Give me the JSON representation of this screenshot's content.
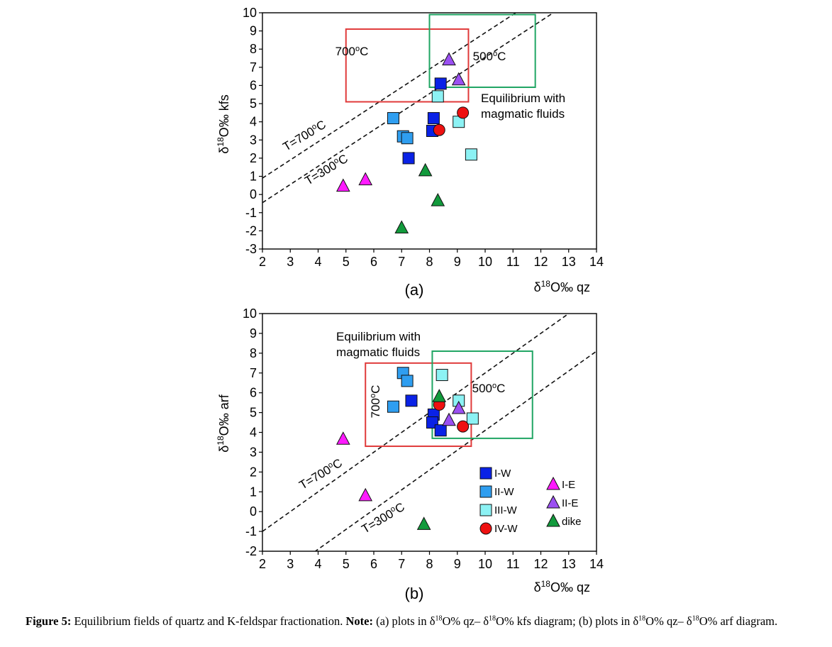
{
  "figure": {
    "caption_lead": "Figure 5:",
    "caption_text": "Equilibrium fields of quartz and K-feldspar fractionation.",
    "caption_note_label": "Note:",
    "caption_a_pre": "(a) plots in δ",
    "caption_a_mid1": "O% qz– δ",
    "caption_a_mid2": "O% kfs diagram; (b) plots in δ",
    "caption_b_mid": "O% qz–",
    "caption_b_pre": "δ",
    "caption_b_end": "O% arf diagram.",
    "caption_sup": "18"
  },
  "legend": {
    "items": [
      {
        "label": "I-W",
        "marker": "square",
        "color": "#0a22e6"
      },
      {
        "label": "II-W",
        "marker": "square",
        "color": "#2f9ef0"
      },
      {
        "label": "III-W",
        "marker": "square",
        "color": "#8cf2f4"
      },
      {
        "label": "IV-W",
        "marker": "circle",
        "color": "#ee1111"
      },
      {
        "label": "I-E",
        "marker": "triangle",
        "color": "#ff1aff"
      },
      {
        "label": "II-E",
        "marker": "triangle",
        "color": "#9b50f2"
      },
      {
        "label": "dike",
        "marker": "triangle",
        "color": "#129a3c"
      }
    ]
  },
  "chart_data": [
    {
      "type": "scatter",
      "panel_label": "(a)",
      "xlabel_prefix": "δ",
      "xlabel_sup": "18",
      "xlabel_suffix": "O‰ qz",
      "ylabel_prefix": "δ",
      "ylabel_sup": "18",
      "ylabel_suffix": "O‰ kfs",
      "xlim": [
        2,
        14
      ],
      "ylim": [
        -3,
        10
      ],
      "xticks": [
        2,
        3,
        4,
        5,
        6,
        7,
        8,
        9,
        10,
        11,
        12,
        13,
        14
      ],
      "yticks": [
        -3,
        -2,
        -1,
        0,
        1,
        2,
        3,
        4,
        5,
        6,
        7,
        8,
        9,
        10
      ],
      "lines": [
        {
          "label": "T=700",
          "sup": "o",
          "suffix": "C",
          "intercept": -1.1
        },
        {
          "label": "T=300",
          "sup": "o",
          "suffix": "C",
          "intercept": -2.45
        }
      ],
      "boxes": [
        {
          "label": "700",
          "sup": "o",
          "suffix": "C",
          "color": "#e03a3a",
          "x": [
            5.0,
            9.4
          ],
          "y": [
            5.1,
            9.1
          ],
          "rotate": false
        },
        {
          "label": "500",
          "sup": "o",
          "suffix": "C",
          "color": "#1fa563",
          "x": [
            8.0,
            11.8
          ],
          "y": [
            5.9,
            9.9
          ],
          "rotate": false
        }
      ],
      "annotation": [
        "Equilibrium with",
        "magmatic fluids"
      ],
      "series": [
        {
          "name": "I-W",
          "marker": "square",
          "color": "#0a22e6",
          "points": [
            [
              8.4,
              6.1
            ],
            [
              8.15,
              4.2
            ],
            [
              8.1,
              3.5
            ],
            [
              7.25,
              2.0
            ]
          ]
        },
        {
          "name": "II-W",
          "marker": "square",
          "color": "#2f9ef0",
          "points": [
            [
              6.7,
              4.2
            ],
            [
              7.05,
              3.2
            ],
            [
              7.2,
              3.1
            ]
          ]
        },
        {
          "name": "III-W",
          "marker": "square",
          "color": "#8cf2f4",
          "points": [
            [
              8.3,
              5.4
            ],
            [
              9.05,
              4.0
            ],
            [
              9.5,
              2.2
            ]
          ]
        },
        {
          "name": "IV-W",
          "marker": "circle",
          "color": "#ee1111",
          "points": [
            [
              9.2,
              4.5
            ],
            [
              8.35,
              3.55
            ]
          ]
        },
        {
          "name": "I-E",
          "marker": "triangle",
          "color": "#ff1aff",
          "points": [
            [
              4.9,
              0.45
            ],
            [
              5.7,
              0.8
            ]
          ]
        },
        {
          "name": "II-E",
          "marker": "triangle",
          "color": "#9b50f2",
          "points": [
            [
              8.7,
              7.4
            ],
            [
              9.05,
              6.3
            ]
          ]
        },
        {
          "name": "dike",
          "marker": "triangle",
          "color": "#129a3c",
          "points": [
            [
              7.85,
              1.3
            ],
            [
              8.3,
              -0.35
            ],
            [
              7.0,
              -1.85
            ]
          ]
        }
      ]
    },
    {
      "type": "scatter",
      "panel_label": "(b)",
      "xlabel_prefix": "δ",
      "xlabel_sup": "18",
      "xlabel_suffix": "O‰ qz",
      "ylabel_prefix": "δ",
      "ylabel_sup": "18",
      "ylabel_suffix": "O‰ arf",
      "xlim": [
        2,
        14
      ],
      "ylim": [
        -2,
        10
      ],
      "xticks": [
        2,
        3,
        4,
        5,
        6,
        7,
        8,
        9,
        10,
        11,
        12,
        13,
        14
      ],
      "yticks": [
        -2,
        -1,
        0,
        1,
        2,
        3,
        4,
        5,
        6,
        7,
        8,
        9,
        10
      ],
      "lines": [
        {
          "label": "T=700",
          "sup": "o",
          "suffix": "C",
          "intercept": -3.0
        },
        {
          "label": "T=300",
          "sup": "o",
          "suffix": "C",
          "intercept": -5.9
        }
      ],
      "boxes": [
        {
          "label": "700",
          "sup": "o",
          "suffix": "C",
          "color": "#e03a3a",
          "x": [
            5.7,
            9.5
          ],
          "y": [
            3.3,
            7.5
          ],
          "rotate": true
        },
        {
          "label": "500",
          "sup": "o",
          "suffix": "C",
          "color": "#1fa563",
          "x": [
            8.1,
            11.7
          ],
          "y": [
            3.7,
            8.1
          ],
          "rotate": false
        }
      ],
      "annotation": [
        "Equilibrium with",
        "magmatic fluids"
      ],
      "series": [
        {
          "name": "I-W",
          "marker": "square",
          "color": "#0a22e6",
          "points": [
            [
              7.35,
              5.6
            ],
            [
              8.15,
              4.9
            ],
            [
              8.1,
              4.5
            ],
            [
              8.4,
              4.1
            ]
          ]
        },
        {
          "name": "II-W",
          "marker": "square",
          "color": "#2f9ef0",
          "points": [
            [
              7.05,
              7.0
            ],
            [
              7.2,
              6.6
            ],
            [
              6.7,
              5.3
            ]
          ]
        },
        {
          "name": "III-W",
          "marker": "square",
          "color": "#8cf2f4",
          "points": [
            [
              8.45,
              6.9
            ],
            [
              9.05,
              5.6
            ],
            [
              9.55,
              4.7
            ]
          ]
        },
        {
          "name": "IV-W",
          "marker": "circle",
          "color": "#ee1111",
          "points": [
            [
              8.35,
              5.4
            ],
            [
              9.2,
              4.3
            ]
          ]
        },
        {
          "name": "I-E",
          "marker": "triangle",
          "color": "#ff1aff",
          "points": [
            [
              4.9,
              3.65
            ],
            [
              5.7,
              0.8
            ]
          ]
        },
        {
          "name": "II-E",
          "marker": "triangle",
          "color": "#9b50f2",
          "points": [
            [
              9.05,
              5.2
            ],
            [
              8.7,
              4.6
            ]
          ]
        },
        {
          "name": "dike",
          "marker": "triangle",
          "color": "#129a3c",
          "points": [
            [
              8.35,
              5.8
            ],
            [
              7.8,
              -0.65
            ]
          ]
        }
      ]
    }
  ]
}
